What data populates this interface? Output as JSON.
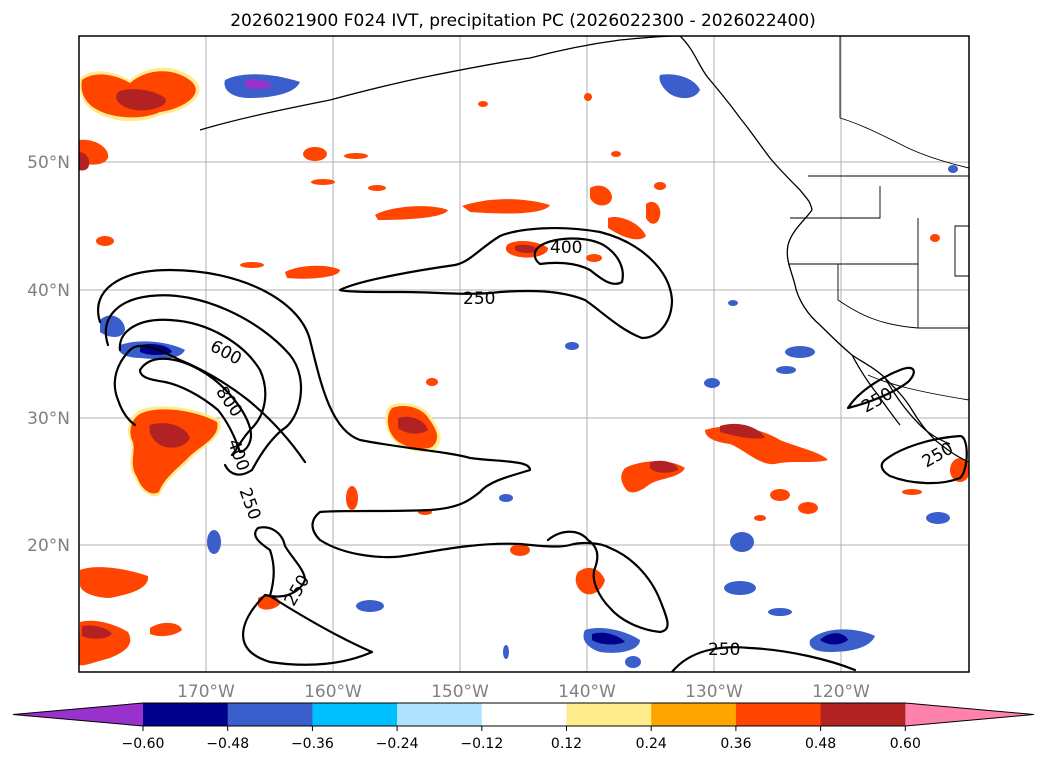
{
  "title": "2026021900 F024 IVT, precipitation PC (2026022300 - 2026022400)",
  "lat_labels": [
    "50°N",
    "40°N",
    "30°N",
    "20°N"
  ],
  "lon_labels": [
    "170°W",
    "160°W",
    "150°W",
    "140°W",
    "130°W",
    "120°W"
  ],
  "contour_labels": [
    "600",
    "800",
    "400",
    "250",
    "250",
    "400",
    "250",
    "250",
    "250",
    "250"
  ],
  "colorbar": {
    "ticks": [
      "−0.60",
      "−0.48",
      "−0.36",
      "−0.24",
      "−0.12",
      "0.12",
      "0.24",
      "0.36",
      "0.48",
      "0.60"
    ],
    "colors": [
      "#9932cc",
      "#00008b",
      "#3a5fcd",
      "#00bfff",
      "#b0e2ff",
      "#ffffff",
      "#ffec8b",
      "#ffa500",
      "#ff4500",
      "#b22222",
      "#ff82ab"
    ]
  },
  "colors": {
    "pos_high": "#b22222",
    "pos_mid": "#ff4500",
    "pos_low": "#ffa500",
    "pos_edge": "#ffec8b",
    "neg_low": "#b0e2ff",
    "neg_mid": "#00bfff",
    "neg_high": "#3a5fcd",
    "neg_max": "#00008b",
    "neg_extreme": "#9932cc"
  }
}
